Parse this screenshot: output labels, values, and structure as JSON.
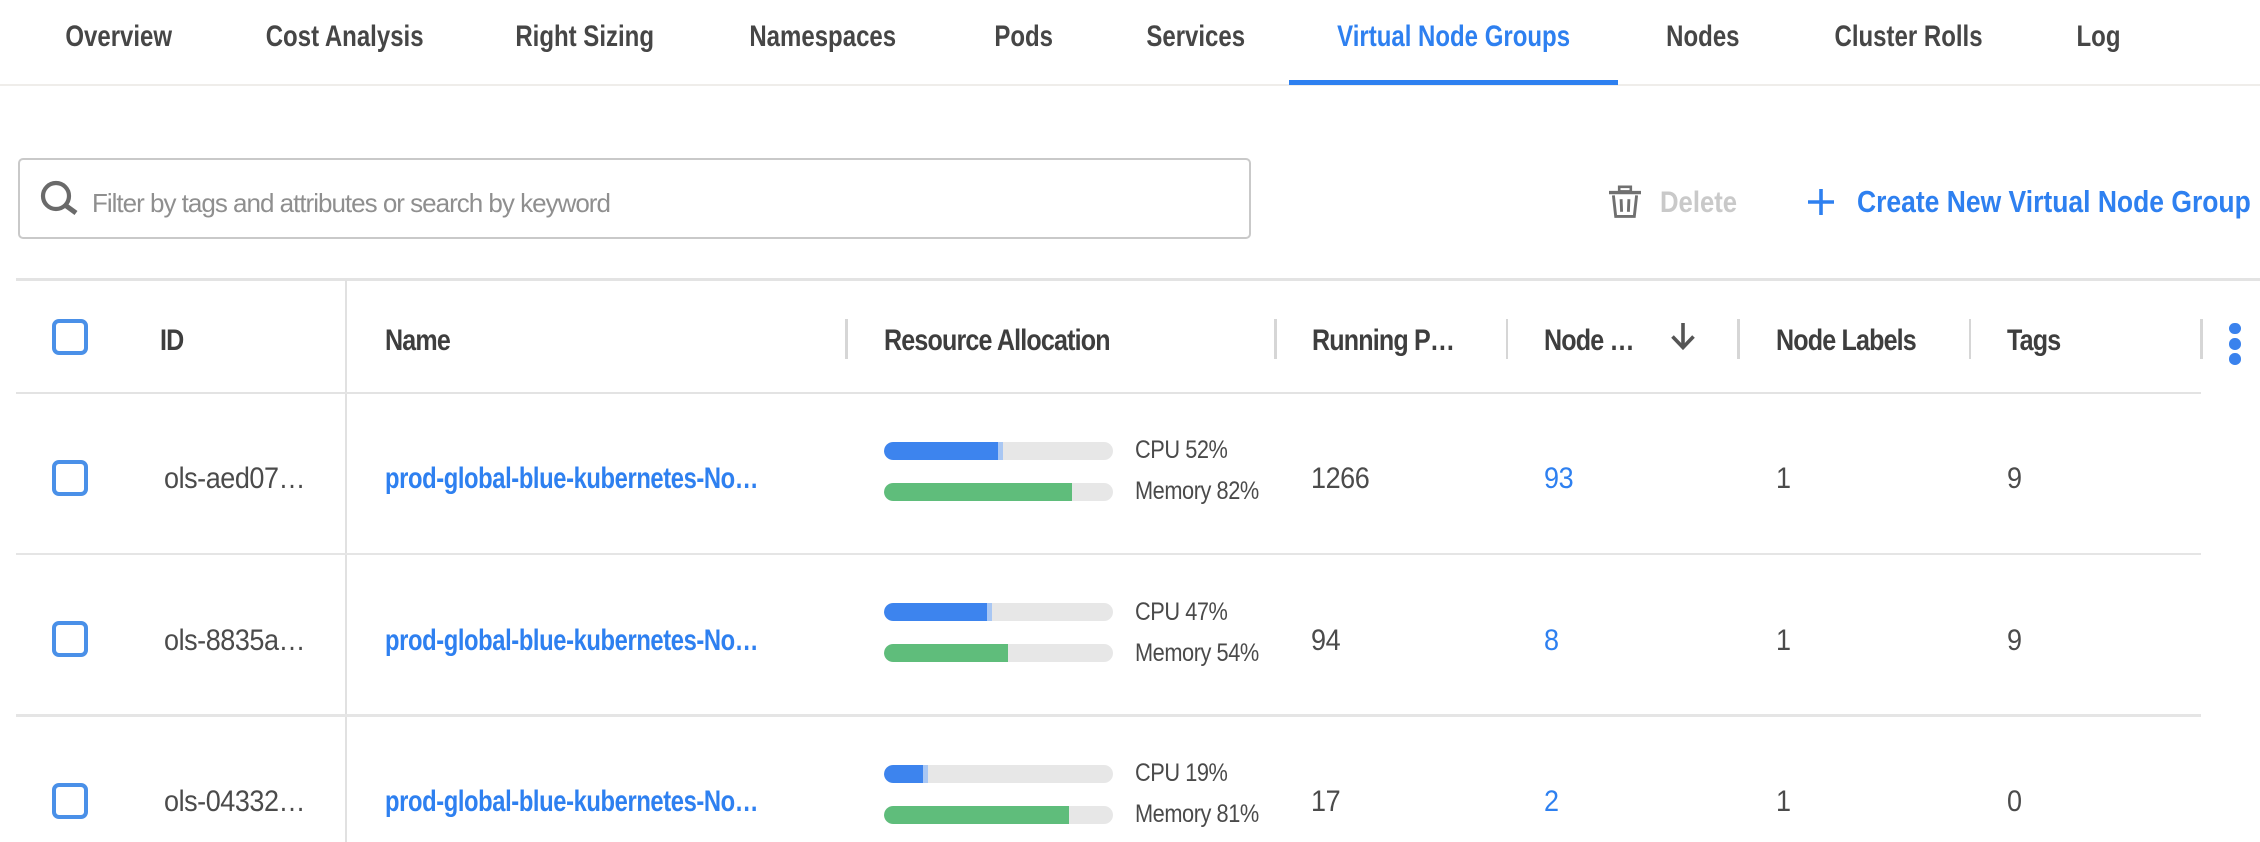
{
  "tabs": {
    "items": [
      {
        "label": "Overview",
        "active": false
      },
      {
        "label": "Cost Analysis",
        "active": false
      },
      {
        "label": "Right Sizing",
        "active": false
      },
      {
        "label": "Namespaces",
        "active": false
      },
      {
        "label": "Pods",
        "active": false
      },
      {
        "label": "Services",
        "active": false
      },
      {
        "label": "Virtual Node Groups",
        "active": true
      },
      {
        "label": "Nodes",
        "active": false
      },
      {
        "label": "Cluster Rolls",
        "active": false
      },
      {
        "label": "Log",
        "active": false
      }
    ]
  },
  "toolbar": {
    "search_placeholder": "Filter by tags and attributes or search by keyword",
    "delete_label": "Delete",
    "create_label": "Create New Virtual Node Group"
  },
  "table": {
    "columns": {
      "id": "ID",
      "name": "Name",
      "resource": "Resource Allocation",
      "running_pods": "Running P…",
      "nodes": "Node …",
      "node_labels": "Node Labels",
      "tags": "Tags"
    },
    "rows": [
      {
        "id": "ols-aed07…",
        "name": "prod-global-blue-kubernetes-No…",
        "cpu_pct": 52,
        "cpu_label": "CPU 52%",
        "memory_pct": 82,
        "memory_label": "Memory 82%",
        "running_pods": "1266",
        "nodes": "93",
        "node_labels": "1",
        "tags": "9"
      },
      {
        "id": "ols-8835a…",
        "name": "prod-global-blue-kubernetes-No…",
        "cpu_pct": 47,
        "cpu_label": "CPU 47%",
        "memory_pct": 54,
        "memory_label": "Memory 54%",
        "running_pods": "94",
        "nodes": "8",
        "node_labels": "1",
        "tags": "9"
      },
      {
        "id": "ols-04332…",
        "name": "prod-global-blue-kubernetes-No…",
        "cpu_pct": 19,
        "cpu_label": "CPU 19%",
        "memory_pct": 81,
        "memory_label": "Memory 81%",
        "running_pods": "17",
        "nodes": "2",
        "node_labels": "1",
        "tags": "0"
      }
    ]
  },
  "colors": {
    "accent_blue": "#2e80f0",
    "bar_blue": "#3d84ee",
    "bar_green": "#5cb974",
    "checkbox_blue": "#4a90e8",
    "disabled_gray": "#c9c9c9"
  }
}
